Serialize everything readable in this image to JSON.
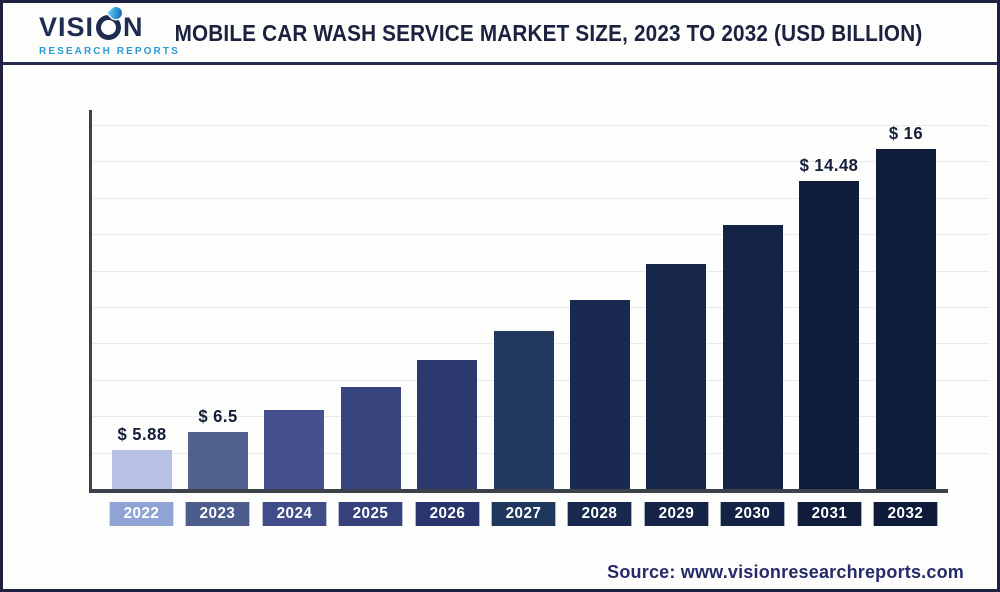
{
  "header": {
    "title": "MOBILE CAR WASH SERVICE MARKET SIZE, 2023 TO 2032 (USD BILLION)",
    "brand": {
      "word_left": "VISI",
      "word_right": "N",
      "word_sub": "RESEARCH REPORTS"
    }
  },
  "footer": {
    "source": "Source: www.visionresearchreports.com"
  },
  "colors": {
    "background": "#fdfdfb",
    "frame_border": "#1e2142",
    "header_divider": "#272b52",
    "title_text": "#1a223f",
    "logo_navy": "#1d2c50",
    "logo_blue": "#2b9ad4",
    "drop_blue_light": "#5ac8f2",
    "drop_blue_dark": "#1565b8",
    "source_text": "#252a68"
  },
  "chart_data": {
    "type": "bar",
    "title": "Mobile Car Wash Service Market Size, 2023 to 2032 (USD Billion)",
    "unit": "USD Billion",
    "categories": [
      "2022",
      "2023",
      "2024",
      "2025",
      "2026",
      "2027",
      "2028",
      "2029",
      "2030",
      "2031",
      "2032"
    ],
    "values": [
      5.88,
      6.5,
      7.18,
      7.93,
      8.76,
      9.68,
      10.69,
      11.81,
      13.05,
      14.48,
      16
    ],
    "labeled_values": {
      "2022": 5.88,
      "2023": 6.5,
      "2031": 14.48,
      "2032": 16
    },
    "data_labels": [
      "$ 5.88",
      "$ 6.5",
      null,
      null,
      null,
      null,
      null,
      null,
      null,
      "$ 14.48",
      "$ 16"
    ],
    "bar_colors": [
      "#b6c1e3",
      "#50618f",
      "#45518c",
      "#39437e",
      "#2d3870",
      "#21395f",
      "#1a2950",
      "#17254a",
      "#142347",
      "#101d3d",
      "#0f1c3c"
    ],
    "tick_box_colors": [
      "#8fa3d4",
      "#4c5d8d",
      "#414d89",
      "#36407b",
      "#2a356d",
      "#1f375d",
      "#19284e",
      "#162448",
      "#132245",
      "#0f1c3c",
      "#0e1b3b"
    ],
    "axis_color": "#3d4149",
    "gridline_color": "#eaeaea",
    "data_label_color": "#141e3a",
    "tick_text_color": "#ffffff",
    "grid": true,
    "gridline_count": 10,
    "y_axis_tick_labels_visible": false,
    "legend": "none",
    "ylim_estimate": [
      0,
      16
    ]
  }
}
